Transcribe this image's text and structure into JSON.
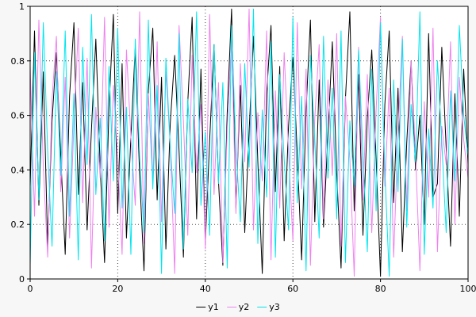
{
  "chart_data": {
    "type": "line",
    "title": "",
    "xlabel": "",
    "ylabel": "",
    "xlim": [
      0,
      100
    ],
    "ylim": [
      0,
      1
    ],
    "xticks": [
      0,
      20,
      40,
      60,
      80,
      100
    ],
    "yticks": [
      0,
      0.2,
      0.4,
      0.6,
      0.8,
      1
    ],
    "grid": "dotted",
    "legend_position": "bottom-center",
    "background": {
      "outer": "#f7f7f7",
      "plot": "#ffffff",
      "frame": "#000000",
      "grid_color": "#444444"
    },
    "x": [
      0,
      1,
      2,
      3,
      4,
      5,
      6,
      7,
      8,
      9,
      10,
      11,
      12,
      13,
      14,
      15,
      16,
      17,
      18,
      19,
      20,
      21,
      22,
      23,
      24,
      25,
      26,
      27,
      28,
      29,
      30,
      31,
      32,
      33,
      34,
      35,
      36,
      37,
      38,
      39,
      40,
      41,
      42,
      43,
      44,
      45,
      46,
      47,
      48,
      49,
      50,
      51,
      52,
      53,
      54,
      55,
      56,
      57,
      58,
      59,
      60,
      61,
      62,
      63,
      64,
      65,
      66,
      67,
      68,
      69,
      70,
      71,
      72,
      73,
      74,
      75,
      76,
      77,
      78,
      79,
      80,
      81,
      82,
      83,
      84,
      85,
      86,
      87,
      88,
      89,
      90,
      91,
      92,
      93,
      94,
      95,
      96,
      97,
      98,
      99,
      100
    ],
    "series": [
      {
        "name": "y1",
        "color": "#000000",
        "values": [
          0.34,
          0.91,
          0.27,
          0.76,
          0.12,
          0.58,
          0.83,
          0.45,
          0.09,
          0.67,
          0.94,
          0.31,
          0.72,
          0.18,
          0.55,
          0.88,
          0.41,
          0.06,
          0.63,
          0.97,
          0.24,
          0.79,
          0.15,
          0.52,
          0.85,
          0.38,
          0.03,
          0.69,
          0.92,
          0.29,
          0.74,
          0.11,
          0.57,
          0.82,
          0.47,
          0.08,
          0.65,
          0.96,
          0.22,
          0.77,
          0.13,
          0.51,
          0.86,
          0.36,
          0.05,
          0.61,
          0.99,
          0.26,
          0.71,
          0.17,
          0.54,
          0.89,
          0.43,
          0.02,
          0.68,
          0.93,
          0.32,
          0.78,
          0.14,
          0.56,
          0.81,
          0.46,
          0.07,
          0.62,
          0.95,
          0.21,
          0.73,
          0.19,
          0.53,
          0.87,
          0.39,
          0.04,
          0.66,
          0.98,
          0.25,
          0.75,
          0.16,
          0.59,
          0.84,
          0.44,
          0.01,
          0.64,
          0.91,
          0.28,
          0.7,
          0.1,
          0.5,
          0.8,
          0.4,
          0.6,
          0.2,
          0.9,
          0.3,
          0.35,
          0.85,
          0.48,
          0.12,
          0.68,
          0.23,
          0.77,
          0.42
        ]
      },
      {
        "name": "y2",
        "color": "#ee82ee",
        "values": [
          0.78,
          0.23,
          0.95,
          0.41,
          0.08,
          0.66,
          0.89,
          0.32,
          0.74,
          0.15,
          0.57,
          0.92,
          0.28,
          0.81,
          0.04,
          0.63,
          0.37,
          0.96,
          0.19,
          0.71,
          0.45,
          0.09,
          0.84,
          0.52,
          0.27,
          0.98,
          0.13,
          0.68,
          0.35,
          0.87,
          0.21,
          0.76,
          0.49,
          0.02,
          0.93,
          0.58,
          0.16,
          0.82,
          0.39,
          0.64,
          0.11,
          0.97,
          0.31,
          0.72,
          0.06,
          0.55,
          0.88,
          0.24,
          0.79,
          0.43,
          0.99,
          0.18,
          0.61,
          0.36,
          0.91,
          0.07,
          0.69,
          0.26,
          0.83,
          0.47,
          0.14,
          0.94,
          0.33,
          0.77,
          0.05,
          0.59,
          0.86,
          0.22,
          0.73,
          0.38,
          0.9,
          0.12,
          0.67,
          0.44,
          0.01,
          0.85,
          0.29,
          0.75,
          0.17,
          0.62,
          0.96,
          0.34,
          0.7,
          0.08,
          0.53,
          0.89,
          0.25,
          0.8,
          0.46,
          0.03,
          0.65,
          0.3,
          0.92,
          0.1,
          0.56,
          0.42,
          0.87,
          0.2,
          0.74,
          0.51,
          0.37
        ]
      },
      {
        "name": "y3",
        "color": "#00e5ee",
        "values": [
          0.05,
          0.83,
          0.29,
          0.94,
          0.47,
          0.12,
          0.76,
          0.38,
          0.91,
          0.23,
          0.68,
          0.07,
          0.85,
          0.42,
          0.97,
          0.31,
          0.59,
          0.14,
          0.78,
          0.36,
          0.92,
          0.26,
          0.63,
          0.09,
          0.88,
          0.45,
          0.17,
          0.95,
          0.33,
          0.71,
          0.02,
          0.81,
          0.49,
          0.24,
          0.9,
          0.11,
          0.66,
          0.39,
          0.98,
          0.27,
          0.54,
          0.16,
          0.86,
          0.35,
          0.72,
          0.04,
          0.93,
          0.48,
          0.21,
          0.79,
          0.41,
          0.99,
          0.13,
          0.62,
          0.3,
          0.87,
          0.08,
          0.75,
          0.44,
          0.18,
          0.96,
          0.28,
          0.67,
          0.03,
          0.82,
          0.51,
          0.15,
          0.89,
          0.37,
          0.7,
          0.22,
          0.91,
          0.06,
          0.58,
          0.34,
          0.84,
          0.46,
          0.1,
          0.77,
          0.25,
          0.94,
          0.4,
          0.01,
          0.73,
          0.32,
          0.88,
          0.19,
          0.64,
          0.43,
          0.98,
          0.09,
          0.55,
          0.26,
          0.8,
          0.5,
          0.17,
          0.69,
          0.36,
          0.93,
          0.6,
          0.45
        ]
      }
    ]
  }
}
